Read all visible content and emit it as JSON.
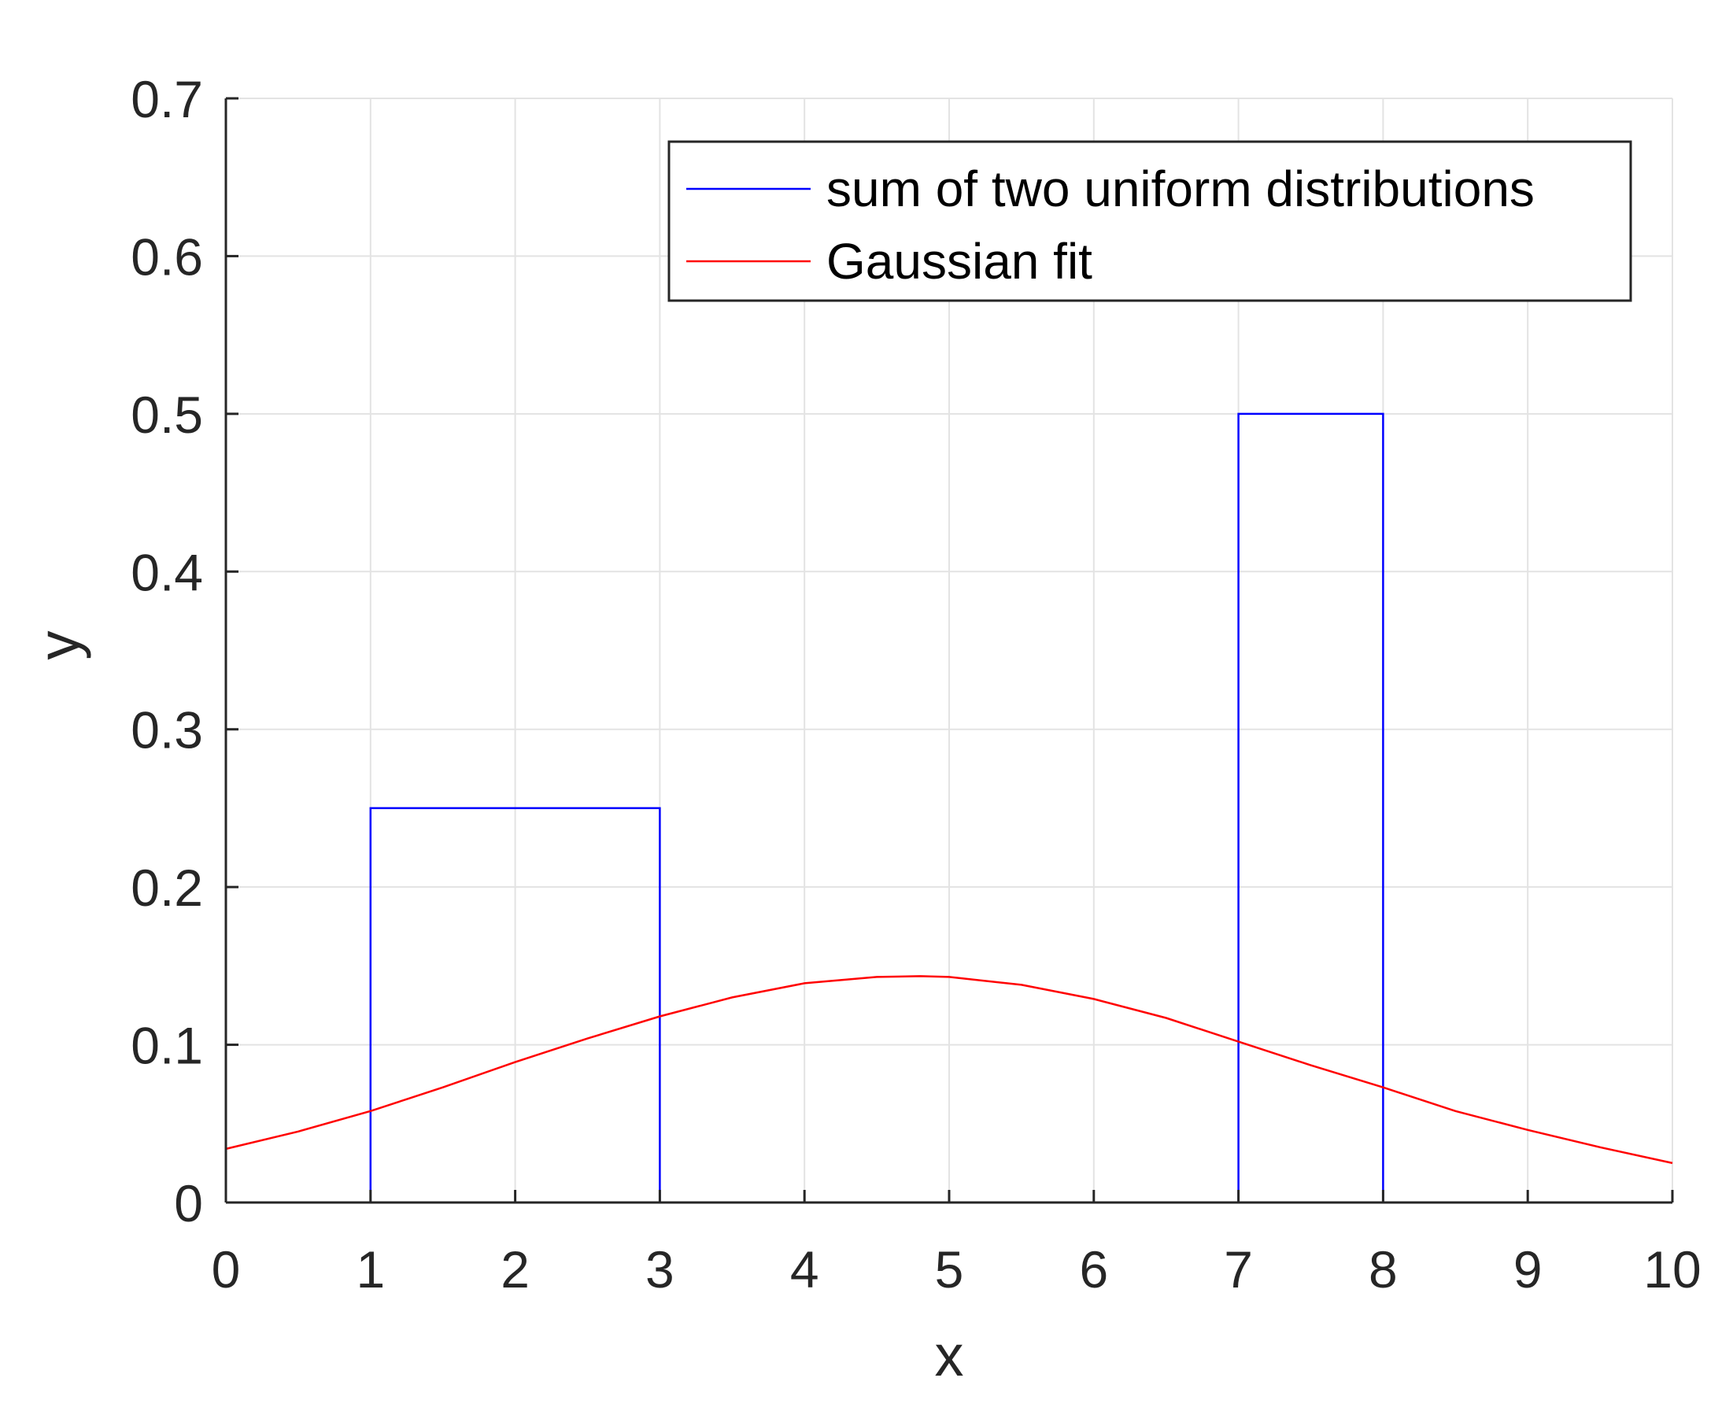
{
  "chart_data": {
    "type": "line",
    "title": "",
    "xlabel": "x",
    "ylabel": "y",
    "xlim": [
      0,
      10
    ],
    "ylim": [
      0,
      0.7
    ],
    "xticks": [
      0,
      1,
      2,
      3,
      4,
      5,
      6,
      7,
      8,
      9,
      10
    ],
    "xtick_labels": [
      "0",
      "1",
      "2",
      "3",
      "4",
      "5",
      "6",
      "7",
      "8",
      "9",
      "10"
    ],
    "yticks": [
      0,
      0.1,
      0.2,
      0.3,
      0.4,
      0.5,
      0.6,
      0.7
    ],
    "ytick_labels": [
      "0",
      "0.1",
      "0.2",
      "0.3",
      "0.4",
      "0.5",
      "0.6",
      "0.7"
    ],
    "grid": true,
    "legend_position": "top-right",
    "series": [
      {
        "name": "sum of two uniform distributions",
        "color": "#0000ff",
        "style": "step",
        "x": [
          0,
          1,
          1,
          3,
          3,
          7,
          7,
          8,
          8,
          10
        ],
        "y": [
          0,
          0,
          0.25,
          0.25,
          0,
          0,
          0.5,
          0.5,
          0,
          0
        ]
      },
      {
        "name": "Gaussian fit",
        "color": "#ff0000",
        "style": "line",
        "x": [
          0,
          0.5,
          1,
          1.5,
          2,
          2.5,
          3,
          3.5,
          4,
          4.5,
          4.8,
          5,
          5.5,
          6,
          6.5,
          7,
          7.5,
          8,
          8.5,
          9,
          9.5,
          10
        ],
        "y": [
          0.034,
          0.045,
          0.058,
          0.073,
          0.089,
          0.104,
          0.118,
          0.13,
          0.139,
          0.143,
          0.1435,
          0.143,
          0.138,
          0.129,
          0.117,
          0.102,
          0.087,
          0.073,
          0.058,
          0.046,
          0.035,
          0.025
        ]
      }
    ]
  }
}
